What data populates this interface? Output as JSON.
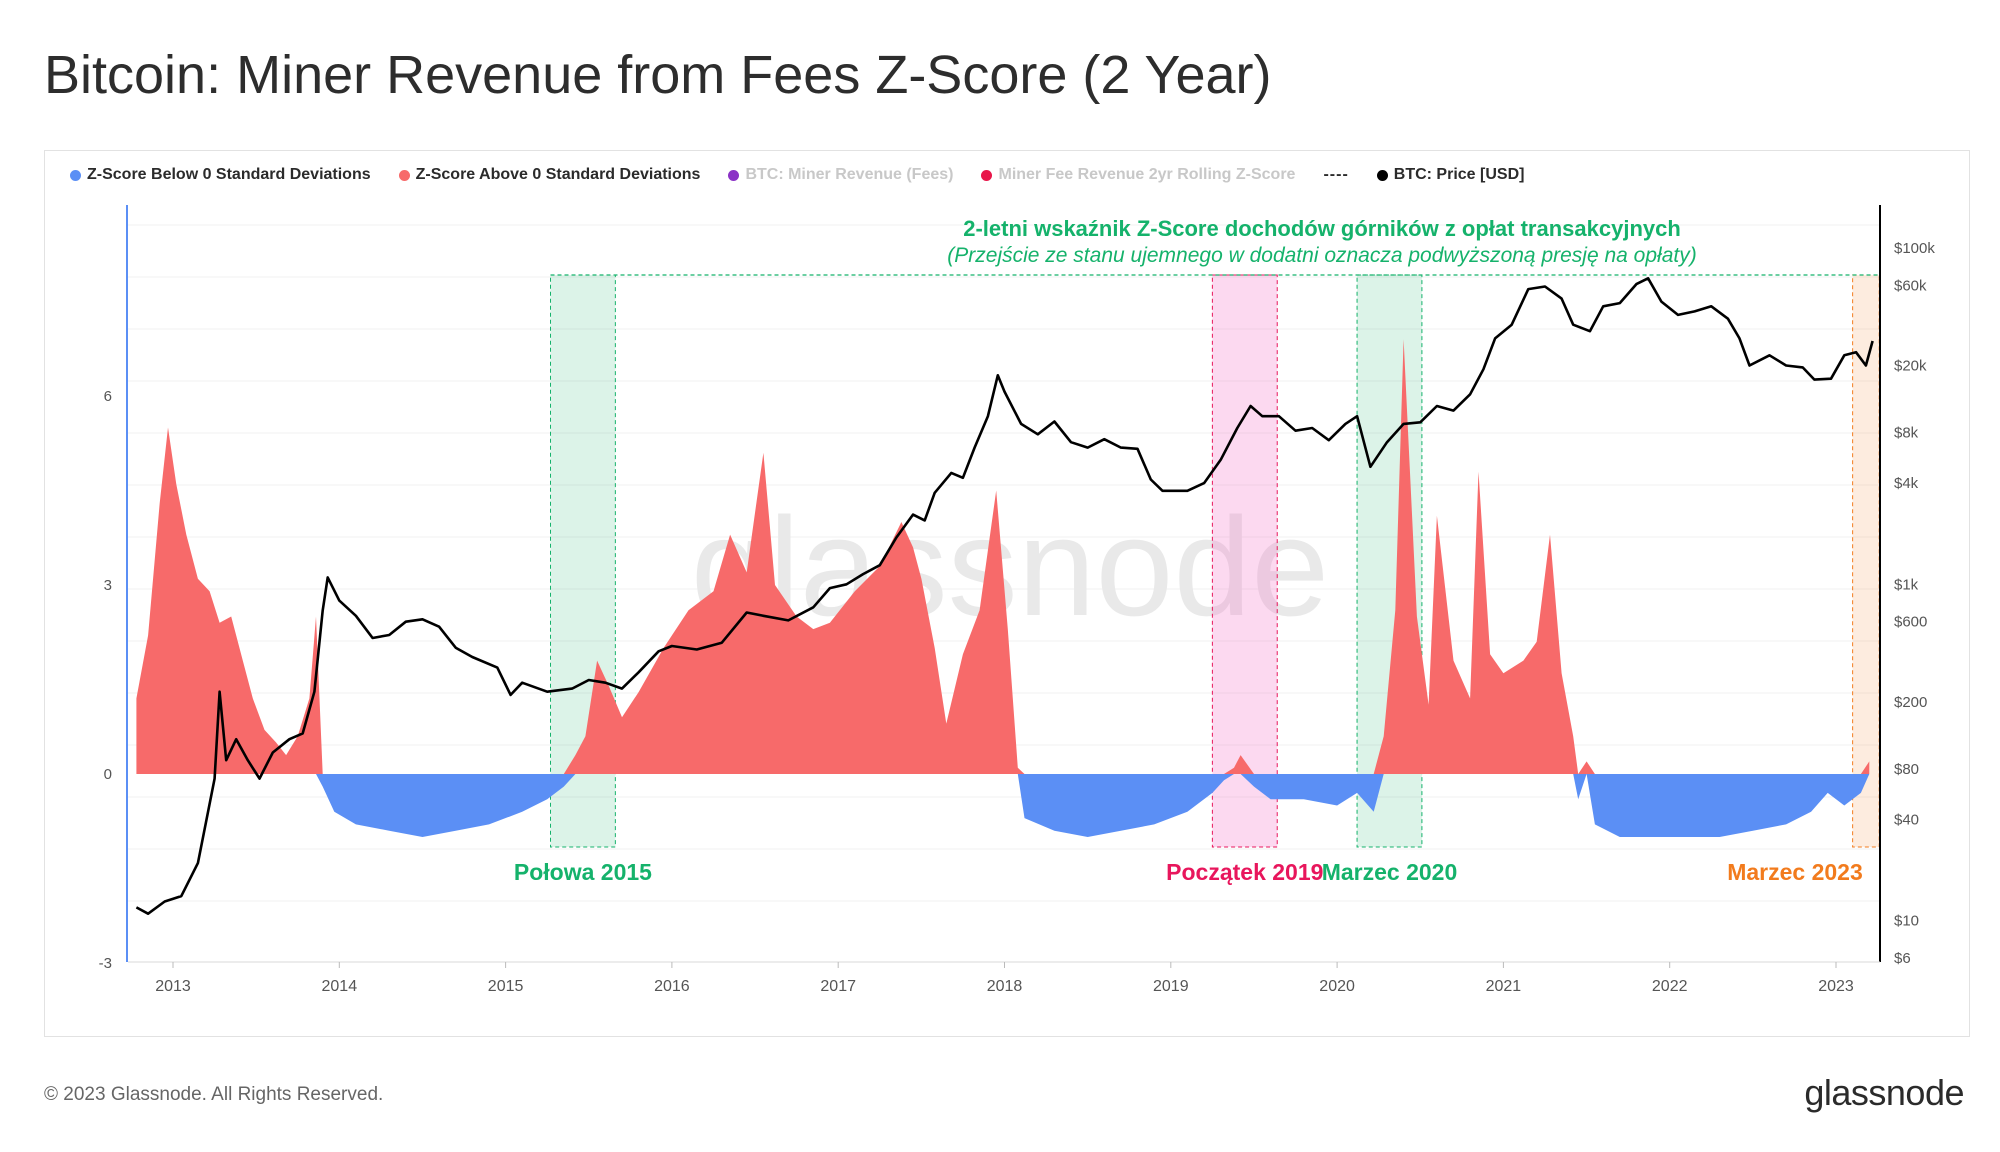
{
  "title": "Bitcoin: Miner Revenue from Fees Z-Score (2 Year)",
  "footer": {
    "copyright": "© 2023 Glassnode. All Rights Reserved.",
    "logo": "glassnode"
  },
  "watermark": "glassnode",
  "legend": [
    {
      "label": "Z-Score Below 0 Standard Deviations",
      "color": "#5b8ff5",
      "active": true
    },
    {
      "label": "Z-Score Above 0 Standard Deviations",
      "color": "#f76a6a",
      "active": true
    },
    {
      "label": "BTC: Miner Revenue (Fees)",
      "color": "#8b32c6",
      "active": false
    },
    {
      "label": "Miner Fee Revenue 2yr Rolling Z-Score",
      "color": "#e8164a",
      "active": false
    },
    {
      "label": "----",
      "color": null,
      "active": true
    },
    {
      "label": "BTC: Price [USD]",
      "color": "#000000",
      "active": true
    }
  ],
  "annotation": {
    "title": "2-letni wskaźnik Z-Score dochodów górników z opłat transakcyjnych",
    "subtitle": "(Przejście ze stanu ujemnego w dodatni oznacza podwyższoną presję na opłaty)",
    "color": "#15b26b"
  },
  "chart_data": {
    "type": "area",
    "x_ticks": [
      "2013",
      "2014",
      "2015",
      "2016",
      "2017",
      "2018",
      "2019",
      "2020",
      "2021",
      "2022",
      "2023"
    ],
    "y_left": {
      "ticks": [
        "6",
        "3",
        "0",
        "-3"
      ],
      "range": [
        -3,
        7.5
      ]
    },
    "y_right": {
      "scale": "log",
      "ticks": [
        "$100k",
        "$60k",
        "$20k",
        "$8k",
        "$4k",
        "$1k",
        "$600",
        "$200",
        "$80",
        "$40",
        "$10",
        "$6"
      ],
      "range": [
        6,
        100000
      ]
    },
    "series": [
      {
        "name": "Z-Score Below 0 Standard Deviations",
        "color": "#5b8ff5"
      },
      {
        "name": "Z-Score Above 0 Standard Deviations",
        "color": "#f76a6a"
      },
      {
        "name": "BTC: Price [USD]",
        "color": "#000000"
      }
    ],
    "zscore": [
      [
        2012.78,
        1.2
      ],
      [
        2012.85,
        2.2
      ],
      [
        2012.92,
        4.3
      ],
      [
        2012.97,
        5.5
      ],
      [
        2013.02,
        4.6
      ],
      [
        2013.08,
        3.8
      ],
      [
        2013.15,
        3.1
      ],
      [
        2013.22,
        2.9
      ],
      [
        2013.28,
        2.4
      ],
      [
        2013.35,
        2.5
      ],
      [
        2013.42,
        1.8
      ],
      [
        2013.48,
        1.2
      ],
      [
        2013.55,
        0.7
      ],
      [
        2013.62,
        0.5
      ],
      [
        2013.68,
        0.3
      ],
      [
        2013.75,
        0.6
      ],
      [
        2013.82,
        1.2
      ],
      [
        2013.86,
        2.5
      ],
      [
        2013.9,
        -0.2
      ],
      [
        2013.97,
        -0.6
      ],
      [
        2014.1,
        -0.8
      ],
      [
        2014.3,
        -0.9
      ],
      [
        2014.5,
        -1.0
      ],
      [
        2014.7,
        -0.9
      ],
      [
        2014.9,
        -0.8
      ],
      [
        2015.1,
        -0.6
      ],
      [
        2015.25,
        -0.4
      ],
      [
        2015.35,
        -0.2
      ],
      [
        2015.42,
        0.3
      ],
      [
        2015.48,
        0.6
      ],
      [
        2015.55,
        1.8
      ],
      [
        2015.62,
        1.4
      ],
      [
        2015.7,
        0.9
      ],
      [
        2015.8,
        1.3
      ],
      [
        2015.95,
        2.0
      ],
      [
        2016.1,
        2.6
      ],
      [
        2016.25,
        2.9
      ],
      [
        2016.35,
        3.8
      ],
      [
        2016.45,
        3.2
      ],
      [
        2016.55,
        5.1
      ],
      [
        2016.62,
        3.0
      ],
      [
        2016.75,
        2.5
      ],
      [
        2016.85,
        2.3
      ],
      [
        2016.95,
        2.4
      ],
      [
        2017.1,
        2.9
      ],
      [
        2017.25,
        3.3
      ],
      [
        2017.38,
        4.0
      ],
      [
        2017.45,
        3.6
      ],
      [
        2017.5,
        3.1
      ],
      [
        2017.58,
        2.0
      ],
      [
        2017.65,
        0.8
      ],
      [
        2017.75,
        1.9
      ],
      [
        2017.85,
        2.6
      ],
      [
        2017.95,
        4.5
      ],
      [
        2018.02,
        2.3
      ],
      [
        2018.08,
        0.1
      ],
      [
        2018.12,
        -0.7
      ],
      [
        2018.3,
        -0.9
      ],
      [
        2018.5,
        -1.0
      ],
      [
        2018.7,
        -0.9
      ],
      [
        2018.9,
        -0.8
      ],
      [
        2019.1,
        -0.6
      ],
      [
        2019.25,
        -0.3
      ],
      [
        2019.32,
        -0.1
      ],
      [
        2019.38,
        0.1
      ],
      [
        2019.42,
        0.3
      ],
      [
        2019.5,
        -0.2
      ],
      [
        2019.6,
        -0.4
      ],
      [
        2019.8,
        -0.4
      ],
      [
        2020.0,
        -0.5
      ],
      [
        2020.12,
        -0.3
      ],
      [
        2020.22,
        -0.6
      ],
      [
        2020.28,
        0.6
      ],
      [
        2020.35,
        2.6
      ],
      [
        2020.4,
        6.9
      ],
      [
        2020.48,
        2.5
      ],
      [
        2020.55,
        1.1
      ],
      [
        2020.6,
        4.1
      ],
      [
        2020.7,
        1.8
      ],
      [
        2020.8,
        1.2
      ],
      [
        2020.85,
        4.8
      ],
      [
        2020.92,
        1.9
      ],
      [
        2021.0,
        1.6
      ],
      [
        2021.12,
        1.8
      ],
      [
        2021.2,
        2.1
      ],
      [
        2021.28,
        3.8
      ],
      [
        2021.35,
        1.6
      ],
      [
        2021.42,
        0.6
      ],
      [
        2021.45,
        -0.4
      ],
      [
        2021.5,
        0.2
      ],
      [
        2021.55,
        -0.8
      ],
      [
        2021.7,
        -1.0
      ],
      [
        2021.9,
        -1.0
      ],
      [
        2022.1,
        -1.0
      ],
      [
        2022.3,
        -1.0
      ],
      [
        2022.5,
        -0.9
      ],
      [
        2022.7,
        -0.8
      ],
      [
        2022.85,
        -0.6
      ],
      [
        2022.95,
        -0.3
      ],
      [
        2023.05,
        -0.5
      ],
      [
        2023.15,
        -0.3
      ],
      [
        2023.2,
        0.2
      ]
    ],
    "price": [
      [
        2012.78,
        12
      ],
      [
        2012.85,
        11
      ],
      [
        2012.95,
        13
      ],
      [
        2013.05,
        14
      ],
      [
        2013.15,
        22
      ],
      [
        2013.25,
        70
      ],
      [
        2013.28,
        230
      ],
      [
        2013.32,
        90
      ],
      [
        2013.38,
        120
      ],
      [
        2013.45,
        90
      ],
      [
        2013.52,
        70
      ],
      [
        2013.6,
        100
      ],
      [
        2013.7,
        120
      ],
      [
        2013.78,
        130
      ],
      [
        2013.85,
        230
      ],
      [
        2013.9,
        700
      ],
      [
        2013.93,
        1100
      ],
      [
        2014.0,
        800
      ],
      [
        2014.1,
        650
      ],
      [
        2014.2,
        480
      ],
      [
        2014.3,
        500
      ],
      [
        2014.4,
        600
      ],
      [
        2014.5,
        620
      ],
      [
        2014.6,
        560
      ],
      [
        2014.7,
        420
      ],
      [
        2014.8,
        370
      ],
      [
        2014.95,
        320
      ],
      [
        2015.03,
        220
      ],
      [
        2015.1,
        260
      ],
      [
        2015.25,
        230
      ],
      [
        2015.4,
        240
      ],
      [
        2015.5,
        270
      ],
      [
        2015.6,
        260
      ],
      [
        2015.7,
        240
      ],
      [
        2015.8,
        300
      ],
      [
        2015.92,
        400
      ],
      [
        2016.0,
        430
      ],
      [
        2016.15,
        410
      ],
      [
        2016.3,
        450
      ],
      [
        2016.45,
        680
      ],
      [
        2016.55,
        650
      ],
      [
        2016.7,
        610
      ],
      [
        2016.85,
        730
      ],
      [
        2016.95,
        950
      ],
      [
        2017.05,
        1000
      ],
      [
        2017.15,
        1150
      ],
      [
        2017.25,
        1300
      ],
      [
        2017.35,
        1900
      ],
      [
        2017.45,
        2600
      ],
      [
        2017.52,
        2400
      ],
      [
        2017.58,
        3500
      ],
      [
        2017.68,
        4600
      ],
      [
        2017.75,
        4300
      ],
      [
        2017.82,
        6500
      ],
      [
        2017.9,
        10000
      ],
      [
        2017.96,
        17500
      ],
      [
        2018.0,
        14000
      ],
      [
        2018.1,
        9000
      ],
      [
        2018.2,
        7800
      ],
      [
        2018.3,
        9300
      ],
      [
        2018.4,
        7000
      ],
      [
        2018.5,
        6500
      ],
      [
        2018.6,
        7300
      ],
      [
        2018.7,
        6500
      ],
      [
        2018.8,
        6400
      ],
      [
        2018.88,
        4200
      ],
      [
        2018.95,
        3600
      ],
      [
        2019.1,
        3600
      ],
      [
        2019.2,
        4000
      ],
      [
        2019.3,
        5500
      ],
      [
        2019.4,
        8500
      ],
      [
        2019.48,
        11500
      ],
      [
        2019.55,
        10000
      ],
      [
        2019.65,
        10000
      ],
      [
        2019.75,
        8200
      ],
      [
        2019.85,
        8500
      ],
      [
        2019.95,
        7200
      ],
      [
        2020.05,
        9000
      ],
      [
        2020.12,
        10000
      ],
      [
        2020.2,
        5000
      ],
      [
        2020.3,
        7000
      ],
      [
        2020.4,
        9000
      ],
      [
        2020.5,
        9200
      ],
      [
        2020.6,
        11500
      ],
      [
        2020.7,
        10800
      ],
      [
        2020.8,
        13500
      ],
      [
        2020.88,
        19000
      ],
      [
        2020.95,
        29000
      ],
      [
        2021.05,
        35000
      ],
      [
        2021.15,
        57000
      ],
      [
        2021.25,
        59000
      ],
      [
        2021.35,
        50000
      ],
      [
        2021.42,
        35000
      ],
      [
        2021.52,
        32000
      ],
      [
        2021.6,
        45000
      ],
      [
        2021.7,
        47000
      ],
      [
        2021.8,
        61000
      ],
      [
        2021.87,
        66000
      ],
      [
        2021.95,
        48000
      ],
      [
        2022.05,
        40000
      ],
      [
        2022.15,
        42000
      ],
      [
        2022.25,
        45000
      ],
      [
        2022.35,
        38000
      ],
      [
        2022.42,
        29000
      ],
      [
        2022.48,
        20000
      ],
      [
        2022.6,
        23000
      ],
      [
        2022.7,
        20000
      ],
      [
        2022.8,
        19500
      ],
      [
        2022.87,
        16500
      ],
      [
        2022.97,
        16700
      ],
      [
        2023.05,
        23000
      ],
      [
        2023.12,
        24000
      ],
      [
        2023.18,
        20000
      ],
      [
        2023.22,
        28000
      ]
    ],
    "highlights": [
      {
        "label": "Połowa 2015",
        "start": 2015.27,
        "end": 2015.66,
        "color": "#15b26b",
        "fill": "rgba(60,190,130,0.18)"
      },
      {
        "label": "Początek 2019",
        "start": 2019.25,
        "end": 2019.64,
        "color": "#e8165c",
        "fill": "rgba(245,120,200,0.28)"
      },
      {
        "label": "Marzec 2020",
        "start": 2020.12,
        "end": 2020.51,
        "color": "#15b26b",
        "fill": "rgba(60,190,130,0.18)"
      },
      {
        "label": "Marzec 2023",
        "start": 2023.1,
        "end": 2023.26,
        "color": "#f27b1d",
        "fill": "rgba(245,170,110,0.22)"
      }
    ]
  }
}
